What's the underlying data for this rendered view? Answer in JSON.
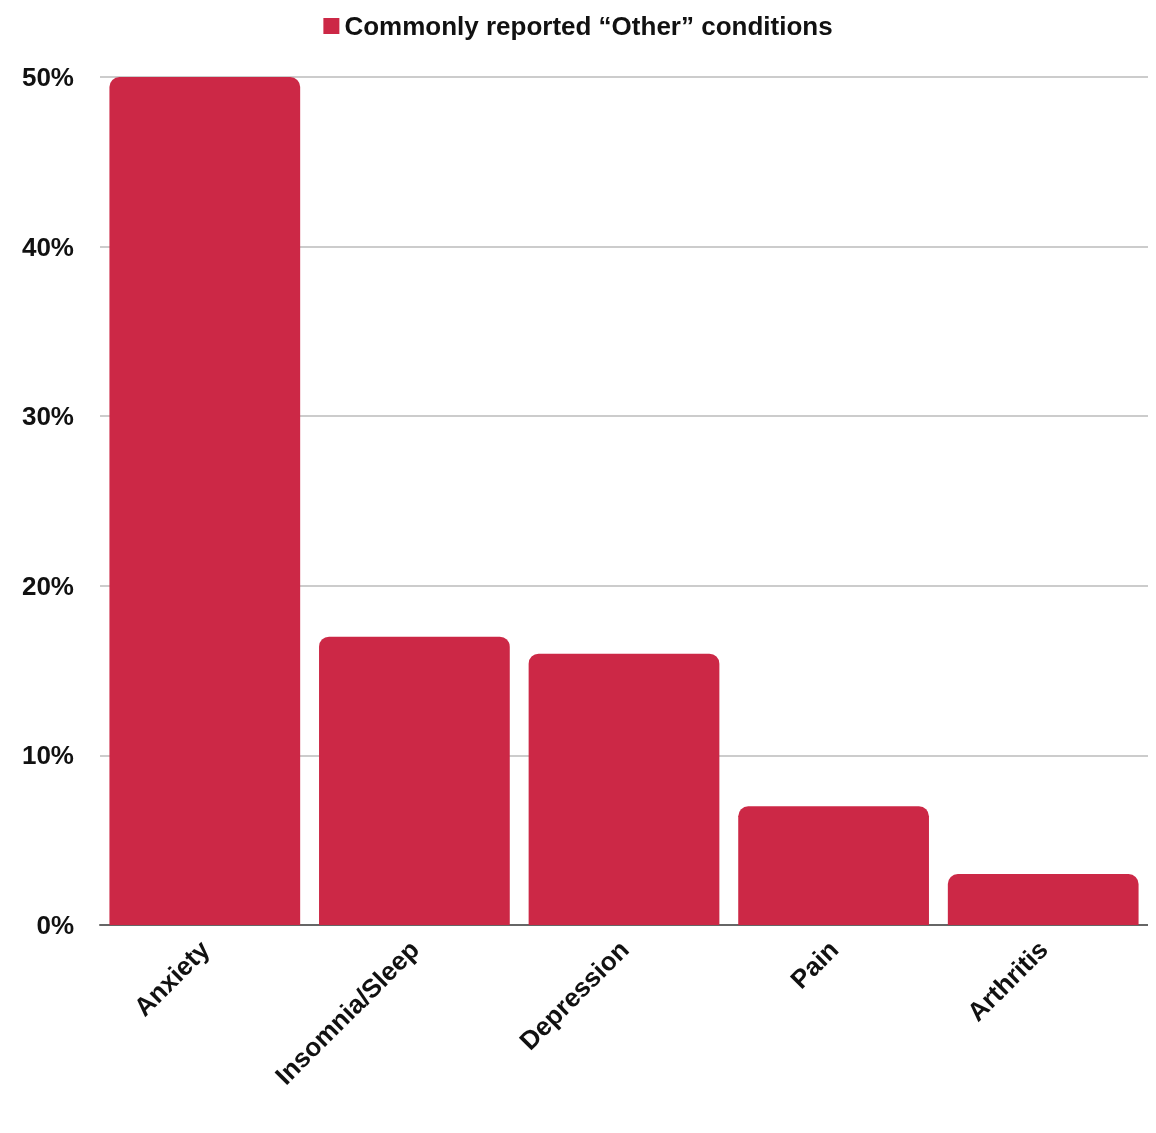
{
  "chart_data": {
    "type": "bar",
    "categories": [
      "Anxiety",
      "Insomnia/Sleep",
      "Depression",
      "Pain",
      "Arthritis"
    ],
    "series": [
      {
        "name": "Commonly reported “Other” conditions",
        "color": "#cc2846",
        "values": [
          50,
          17,
          16,
          7,
          3
        ]
      }
    ],
    "ylim": [
      0,
      50
    ],
    "yticks": [
      {
        "value": 0,
        "label": "0%"
      },
      {
        "value": 10,
        "label": "10%"
      },
      {
        "value": 20,
        "label": "20%"
      },
      {
        "value": 30,
        "label": "30%"
      },
      {
        "value": 40,
        "label": "40%"
      },
      {
        "value": 50,
        "label": "50%"
      }
    ],
    "grid": "y",
    "legend": "top"
  }
}
